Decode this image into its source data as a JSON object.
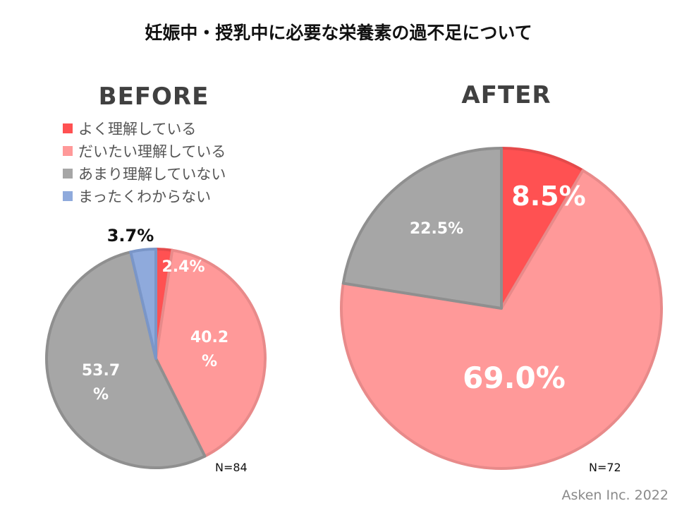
{
  "title": "妊娠中・授乳中に必要な栄養素の過不足について",
  "credit": "Asken Inc. 2022",
  "colors": {
    "understand_well": "#ff5152",
    "mostly_understand": "#ff9999",
    "not_really": "#a6a6a6",
    "not_at_all": "#8faadc"
  },
  "chart_data": [
    {
      "type": "pie",
      "title": "BEFORE",
      "n_label": "N=84",
      "legend": [
        "よく理解している",
        "だいたい理解している",
        "あまり理解していない",
        "まったくわからない"
      ],
      "slices": [
        {
          "category": "よく理解している",
          "value": 2.4,
          "label": "2.4%"
        },
        {
          "category": "だいたい理解している",
          "value": 40.2,
          "label": "40.2%"
        },
        {
          "category": "あまり理解していない",
          "value": 53.7,
          "label": "53.7%"
        },
        {
          "category": "まったくわからない",
          "value": 3.7,
          "label": "3.7%"
        }
      ]
    },
    {
      "type": "pie",
      "title": "AFTER",
      "n_label": "N=72",
      "slices": [
        {
          "category": "よく理解している",
          "value": 8.5,
          "label": "8.5%"
        },
        {
          "category": "だいたい理解している",
          "value": 69.0,
          "label": "69.0%"
        },
        {
          "category": "あまり理解していない",
          "value": 22.5,
          "label": "22.5%"
        }
      ]
    }
  ]
}
